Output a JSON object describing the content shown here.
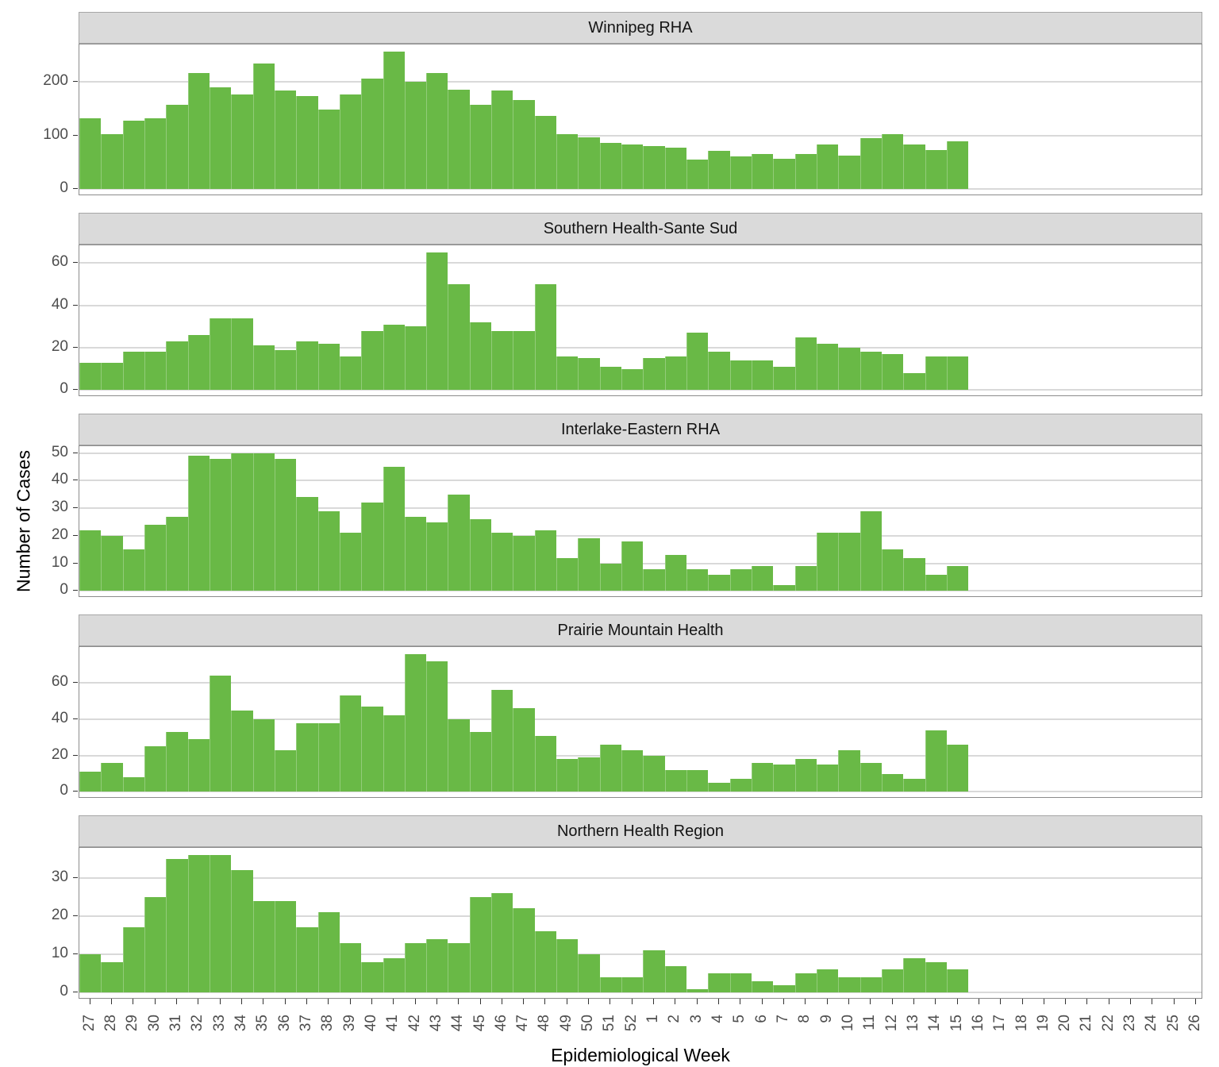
{
  "figure": {
    "x_axis_title": "Epidemiological Week",
    "y_axis_title": "Number of Cases",
    "colors": {
      "bar_fill": "#69B946",
      "strip_bg": "#DADADA",
      "grid": "#D9D9D9",
      "panel_border": "#8C8C8C",
      "axis_text": "#4D4D4D",
      "tick_mark": "#333333"
    }
  },
  "chart_data": {
    "type": "bar",
    "title": "",
    "xlabel": "Epidemiological Week",
    "ylabel": "Number of Cases",
    "legend": "none",
    "grid": "horizontal-major-only",
    "x_tick_labels": [
      "27",
      "28",
      "29",
      "30",
      "31",
      "32",
      "33",
      "34",
      "35",
      "36",
      "37",
      "38",
      "39",
      "40",
      "41",
      "42",
      "43",
      "44",
      "45",
      "46",
      "47",
      "48",
      "49",
      "50",
      "51",
      "52",
      "1",
      "2",
      "3",
      "4",
      "5",
      "6",
      "7",
      "8",
      "9",
      "10",
      "11",
      "12",
      "13",
      "14",
      "15",
      "16",
      "17",
      "18",
      "19",
      "20",
      "21",
      "22",
      "23",
      "24",
      "25",
      "26"
    ],
    "bar_weeks": [
      "27",
      "28",
      "29",
      "30",
      "31",
      "32",
      "33",
      "34",
      "35",
      "36",
      "37",
      "38",
      "39",
      "40",
      "41",
      "42",
      "43",
      "44",
      "45",
      "46",
      "47",
      "48",
      "49",
      "50",
      "51",
      "52",
      "1",
      "2",
      "3",
      "4",
      "5",
      "6",
      "7",
      "8",
      "9",
      "10",
      "11",
      "12",
      "13",
      "14",
      "15"
    ],
    "facets": [
      {
        "title": "Winnipeg RHA",
        "y_ticks": [
          0,
          100,
          200
        ],
        "values": [
          133,
          102,
          128,
          132,
          158,
          216,
          190,
          177,
          235,
          184,
          173,
          149,
          176,
          207,
          257,
          201,
          217,
          186,
          157,
          184,
          166,
          136,
          102,
          97,
          87,
          83,
          80,
          78,
          56,
          71,
          61,
          65,
          57,
          65,
          83,
          62,
          96,
          102,
          83,
          73,
          90
        ]
      },
      {
        "title": "Southern Health-Sante Sud",
        "y_ticks": [
          0,
          20,
          40,
          60
        ],
        "values": [
          13,
          13,
          18,
          18,
          23,
          26,
          34,
          34,
          21,
          19,
          23,
          22,
          16,
          28,
          31,
          30,
          65,
          50,
          32,
          28,
          28,
          50,
          16,
          15,
          11,
          10,
          15,
          16,
          27,
          18,
          14,
          14,
          11,
          25,
          22,
          20,
          18,
          17,
          8,
          16,
          16
        ]
      },
      {
        "title": "Interlake-Eastern RHA",
        "y_ticks": [
          0,
          10,
          20,
          30,
          40,
          50
        ],
        "values": [
          22,
          20,
          15,
          24,
          27,
          49,
          48,
          50,
          50,
          48,
          34,
          29,
          21,
          32,
          45,
          27,
          25,
          35,
          26,
          21,
          20,
          22,
          12,
          19,
          10,
          18,
          8,
          13,
          8,
          6,
          8,
          9,
          2,
          9,
          21,
          21,
          29,
          15,
          12,
          6,
          9
        ]
      },
      {
        "title": "Prairie Mountain Health",
        "y_ticks": [
          0,
          20,
          40,
          60
        ],
        "values": [
          11,
          16,
          8,
          25,
          33,
          29,
          64,
          45,
          40,
          23,
          38,
          38,
          53,
          47,
          42,
          76,
          72,
          40,
          33,
          56,
          46,
          31,
          18,
          19,
          26,
          23,
          20,
          12,
          12,
          5,
          7,
          16,
          15,
          18,
          15,
          23,
          16,
          10,
          7,
          34,
          26
        ]
      },
      {
        "title": "Northern Health Region",
        "y_ticks": [
          0,
          10,
          20,
          30
        ],
        "values": [
          10,
          8,
          17,
          25,
          35,
          36,
          36,
          32,
          24,
          24,
          17,
          21,
          13,
          8,
          9,
          13,
          14,
          13,
          25,
          26,
          22,
          16,
          14,
          10,
          4,
          4,
          11,
          7,
          1,
          5,
          5,
          3,
          2,
          5,
          6,
          4,
          4,
          6,
          9,
          8,
          6
        ]
      }
    ]
  }
}
